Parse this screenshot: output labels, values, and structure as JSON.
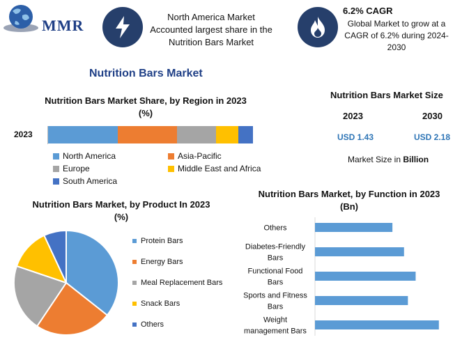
{
  "brand": {
    "name": "MMR"
  },
  "header": {
    "fact1": {
      "icon": "lightning-icon",
      "text": "North America Market Accounted largest share in the Nutrition Bars Market"
    },
    "fact2": {
      "icon": "flame-icon",
      "title": "6.2% CAGR",
      "text": "Global Market to grow at a CAGR of 6.2% during 2024-2030"
    }
  },
  "main_title": "Nutrition Bars Market",
  "colors": {
    "blue": "#5b9bd5",
    "orange": "#ed7d31",
    "gray": "#a5a5a5",
    "yellow": "#ffc000",
    "darkblue": "#4472c4",
    "navy": "#263f6b"
  },
  "market_size": {
    "title": "Nutrition Bars Market Size",
    "year1": "2023",
    "year2": "2030",
    "value1": "USD 1.43",
    "value2": "USD 2.18",
    "note_prefix": "Market Size in ",
    "note_unit": "Billion"
  },
  "chart_data": [
    {
      "type": "bar",
      "orientation": "horizontal-stacked",
      "title": "Nutrition Bars Market Share, by Region in 2023 (%)",
      "categories": [
        "2023"
      ],
      "series": [
        {
          "name": "North America",
          "values": [
            34
          ],
          "color": "#5b9bd5"
        },
        {
          "name": "Asia-Pacific",
          "values": [
            29
          ],
          "color": "#ed7d31"
        },
        {
          "name": "Europe",
          "values": [
            19
          ],
          "color": "#a5a5a5"
        },
        {
          "name": "Middle East and Africa",
          "values": [
            11
          ],
          "color": "#ffc000"
        },
        {
          "name": "South America",
          "values": [
            7
          ],
          "color": "#4472c4"
        }
      ]
    },
    {
      "type": "pie",
      "title": "Nutrition Bars Market, by Product In 2023 (%)",
      "labels": [
        "Protein Bars",
        "Energy Bars",
        "Meal Replacement Bars",
        "Snack Bars",
        "Others"
      ],
      "values": [
        36,
        24,
        21,
        13,
        7
      ],
      "colors": [
        "#5b9bd5",
        "#ed7d31",
        "#a5a5a5",
        "#ffc000",
        "#4472c4"
      ]
    },
    {
      "type": "bar",
      "orientation": "horizontal",
      "title": "Nutrition Bars Market, by Function in 2023 (Bn)",
      "categories": [
        "Others",
        "Diabetes-Friendly Bars",
        "Functional Food Bars",
        "Sports and Fitness Bars",
        "Weight management Bars"
      ],
      "category_lines": [
        [
          "Others"
        ],
        [
          "Diabetes-Friendly",
          "Bars"
        ],
        [
          "Functional Food",
          "Bars"
        ],
        [
          "Sports and Fitness",
          "Bars"
        ],
        [
          "Weight",
          "management Bars"
        ]
      ],
      "values": [
        0.2,
        0.23,
        0.26,
        0.24,
        0.32
      ],
      "color": "#5b9bd5",
      "xlim": [
        0,
        0.36
      ]
    }
  ]
}
